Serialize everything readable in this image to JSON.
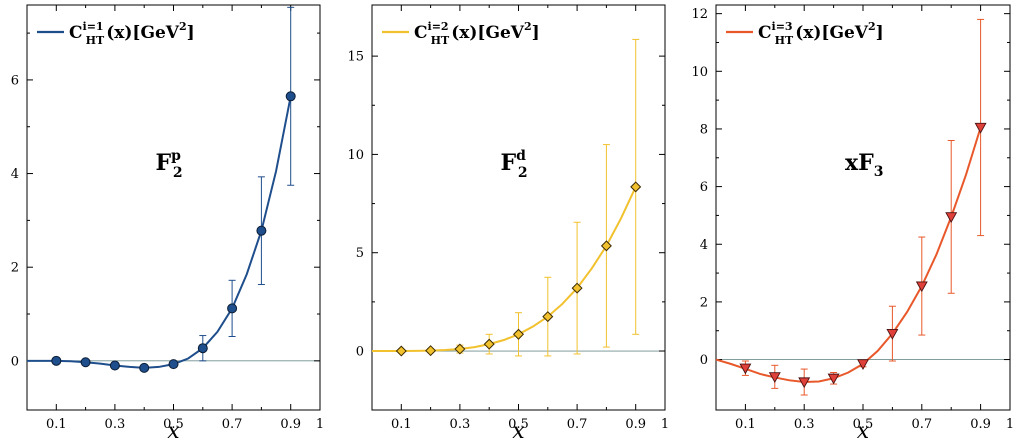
{
  "chart_data": [
    {
      "type": "line",
      "color": "#1f4e8c",
      "marker": "circle",
      "legend": {
        "label": "C_HT^{i=1}(x)[GeV^2]",
        "main": "C",
        "sup": "i=1",
        "sub": "HT",
        "rest": "(x)[GeV",
        "unit_sup": "2",
        "close": "]",
        "placement": "top-left"
      },
      "annotation": {
        "main": "F",
        "sub": "2",
        "sup": "p"
      },
      "xlabel": "x",
      "xlim": [
        0,
        1.0
      ],
      "ylim": [
        -1.05,
        7.6
      ],
      "xticks": [
        "0.1",
        "0.3",
        "0.5",
        "0.7",
        "0.9",
        "1"
      ],
      "xtick_values": [
        0.1,
        0.3,
        0.5,
        0.7,
        0.9,
        1.0
      ],
      "xminor": [
        0.2,
        0.4,
        0.6,
        0.8
      ],
      "yticks": [
        "0",
        "2",
        "4",
        "6"
      ],
      "ytick_values": [
        0,
        2,
        4,
        6
      ],
      "yminor": [
        1,
        3,
        5,
        7
      ],
      "zero_line": true,
      "x": [
        0.1,
        0.2,
        0.3,
        0.4,
        0.5,
        0.6,
        0.7,
        0.8,
        0.9
      ],
      "y": [
        0.0,
        -0.03,
        -0.1,
        -0.15,
        -0.07,
        0.27,
        1.12,
        2.78,
        5.65
      ],
      "yerr": [
        0.02,
        0.02,
        0.03,
        0.04,
        0.05,
        0.27,
        0.6,
        1.15,
        1.9
      ],
      "curve_x": [
        0.0,
        0.05,
        0.1,
        0.15,
        0.2,
        0.25,
        0.3,
        0.35,
        0.4,
        0.45,
        0.5,
        0.55,
        0.6,
        0.65,
        0.7,
        0.75,
        0.8,
        0.85,
        0.9
      ],
      "curve_y": [
        0.0,
        0.0,
        0.0,
        -0.01,
        -0.03,
        -0.06,
        -0.1,
        -0.13,
        -0.15,
        -0.13,
        -0.07,
        0.05,
        0.27,
        0.62,
        1.12,
        1.85,
        2.78,
        4.05,
        5.65
      ]
    },
    {
      "type": "line",
      "color": "#f2c12e",
      "marker": "diamond",
      "legend": {
        "label": "C_HT^{i=2}(x)[GeV^2]",
        "main": "C",
        "sup": "i=2",
        "sub": "HT",
        "rest": "(x)[GeV",
        "unit_sup": "2",
        "close": "]",
        "placement": "top-left"
      },
      "annotation": {
        "main": "F",
        "sub": "2",
        "sup": "d"
      },
      "xlabel": "x",
      "xlim": [
        0,
        1.0
      ],
      "ylim": [
        -3.0,
        17.6
      ],
      "xticks": [
        "0.1",
        "0.3",
        "0.5",
        "0.7",
        "0.9",
        "1"
      ],
      "xtick_values": [
        0.1,
        0.3,
        0.5,
        0.7,
        0.9,
        1.0
      ],
      "xminor": [
        0.2,
        0.4,
        0.6,
        0.8
      ],
      "yticks": [
        "0",
        "5",
        "10",
        "15"
      ],
      "ytick_values": [
        0,
        5,
        10,
        15
      ],
      "yminor": [
        2.5,
        7.5,
        12.5
      ],
      "zero_line": true,
      "x": [
        0.1,
        0.2,
        0.3,
        0.4,
        0.5,
        0.6,
        0.7,
        0.8,
        0.9
      ],
      "y": [
        0.0,
        0.02,
        0.1,
        0.35,
        0.85,
        1.75,
        3.2,
        5.35,
        8.35
      ],
      "yerr": [
        0.05,
        0.1,
        0.2,
        0.5,
        1.1,
        2.0,
        3.35,
        5.15,
        7.5
      ],
      "curve_x": [
        0.0,
        0.05,
        0.1,
        0.15,
        0.2,
        0.25,
        0.3,
        0.35,
        0.4,
        0.45,
        0.5,
        0.55,
        0.6,
        0.65,
        0.7,
        0.75,
        0.8,
        0.85,
        0.9
      ],
      "curve_y": [
        0.0,
        0.0,
        0.0,
        0.01,
        0.02,
        0.05,
        0.1,
        0.2,
        0.35,
        0.56,
        0.85,
        1.25,
        1.75,
        2.4,
        3.2,
        4.2,
        5.35,
        6.75,
        8.35
      ]
    },
    {
      "type": "line",
      "color": "#e8582a",
      "marker_fill": "#e0403a",
      "marker": "triangle-down",
      "legend": {
        "label": "C_HT^{i=3}(x)[GeV^2]",
        "main": "C",
        "sup": "i=3",
        "sub": "HT",
        "rest": "(x)[GeV",
        "unit_sup": "2",
        "close": "]",
        "placement": "top-left"
      },
      "annotation": {
        "main": "xF",
        "sub": "3",
        "sup": ""
      },
      "xlabel": "x",
      "xlim": [
        0,
        1.0
      ],
      "ylim": [
        -1.75,
        12.3
      ],
      "xticks": [
        "0.1",
        "0.3",
        "0.5",
        "0.7",
        "0.9",
        "1"
      ],
      "xtick_values": [
        0.1,
        0.3,
        0.5,
        0.7,
        0.9,
        1.0
      ],
      "xminor": [
        0.2,
        0.4,
        0.6,
        0.8
      ],
      "yticks": [
        "0",
        "2",
        "4",
        "6",
        "8",
        "10",
        "12"
      ],
      "ytick_values": [
        0,
        2,
        4,
        6,
        8,
        10,
        12
      ],
      "yminor": [
        1,
        3,
        5,
        7,
        9,
        11
      ],
      "zero_line": true,
      "x": [
        0.1,
        0.2,
        0.3,
        0.4,
        0.5,
        0.6,
        0.7,
        0.8,
        0.9
      ],
      "y": [
        -0.3,
        -0.6,
        -0.78,
        -0.65,
        -0.15,
        0.9,
        2.55,
        4.95,
        8.05
      ],
      "yerr": [
        0.25,
        0.4,
        0.45,
        0.2,
        0.1,
        0.95,
        1.7,
        2.65,
        3.75
      ],
      "curve_x": [
        0.0,
        0.05,
        0.1,
        0.15,
        0.2,
        0.25,
        0.3,
        0.35,
        0.4,
        0.45,
        0.5,
        0.55,
        0.6,
        0.65,
        0.7,
        0.75,
        0.8,
        0.85,
        0.9
      ],
      "curve_y": [
        0.0,
        -0.15,
        -0.32,
        -0.5,
        -0.62,
        -0.72,
        -0.78,
        -0.76,
        -0.65,
        -0.45,
        -0.15,
        0.3,
        0.9,
        1.65,
        2.55,
        3.65,
        4.95,
        6.4,
        8.05
      ]
    }
  ]
}
